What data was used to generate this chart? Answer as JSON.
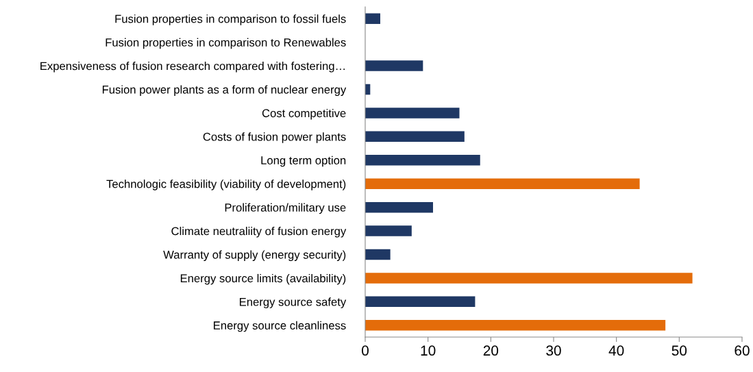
{
  "chart_data": {
    "type": "bar",
    "orientation": "horizontal",
    "categories": [
      "Fusion properties in comparison to fossil fuels",
      "Fusion properties in comparison to Renewables",
      "Expensiveness of fusion research compared with fostering…",
      "Fusion power plants as a form of nuclear energy",
      "Cost competitive",
      "Costs of fusion power plants",
      "Long term option",
      "Technologic feasibility (viability of development)",
      "Proliferation/military use",
      "Climate neutraliity of fusion energy",
      "Warranty of supply (energy security)",
      "Energy source limits (availability)",
      "Energy source safety",
      "Energy source cleanliness"
    ],
    "values": [
      2.4,
      0,
      9.2,
      0.8,
      15,
      15.8,
      18.3,
      43.7,
      10.8,
      7.4,
      4.0,
      52.1,
      17.5,
      47.8
    ],
    "colors": [
      "#1f3864",
      "#1f3864",
      "#1f3864",
      "#1f3864",
      "#1f3864",
      "#1f3864",
      "#1f3864",
      "#e46c0a",
      "#1f3864",
      "#1f3864",
      "#1f3864",
      "#e46c0a",
      "#1f3864",
      "#e46c0a"
    ],
    "xlim": [
      0,
      60
    ],
    "xticks": [
      0,
      10,
      20,
      30,
      40,
      50,
      60
    ],
    "grid": false,
    "legend": false
  }
}
